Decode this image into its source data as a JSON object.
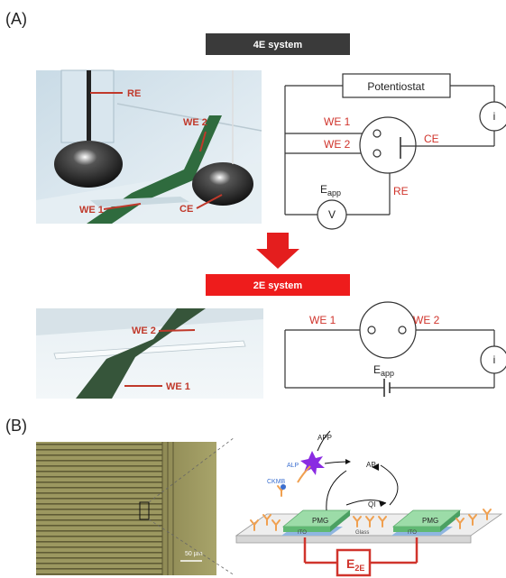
{
  "panel_a": {
    "letter": "(A)",
    "banner_4e": "4E system",
    "banner_2e": "2E system",
    "photo_4e_labels": {
      "re": "RE",
      "we2": "WE 2",
      "we1": "WE 1",
      "ce": "CE"
    },
    "photo_2e_labels": {
      "we2": "WE 2",
      "we1": "WE 1"
    },
    "circuit_4e": {
      "potentiostat": "Potentiostat",
      "i": "i",
      "we1": "WE 1",
      "we2": "WE 2",
      "ce": "CE",
      "eapp": "E",
      "eapp_sub": "app",
      "v": "V",
      "re": "RE"
    },
    "circuit_2e": {
      "we1": "WE 1",
      "we2": "WE 2",
      "i": "i",
      "eapp": "E",
      "eapp_sub": "app"
    }
  },
  "panel_b": {
    "letter": "(B)",
    "scale_bar": "50 µm",
    "labels": {
      "app": "APP",
      "ap": "AP",
      "qi": "QI",
      "alp": "ALP",
      "ckmb": "CKMB",
      "pmg_left": "PMG",
      "pmg_right": "PMG",
      "ito_left": "ITO",
      "ito_right": "ITO",
      "glass": "Glass",
      "e2e": "E",
      "e2e_sub": "2E"
    }
  },
  "colors": {
    "red_label": "#c0392b",
    "circuit_red": "#d0342c",
    "banner_dark": "#3a3a3a",
    "banner_red": "#ee1c1c",
    "pmg_green": "#7fcf8f",
    "ito_blue": "#8fb6e0",
    "antibody_orange": "#f0a050",
    "alp_purple": "#8a2be2"
  }
}
